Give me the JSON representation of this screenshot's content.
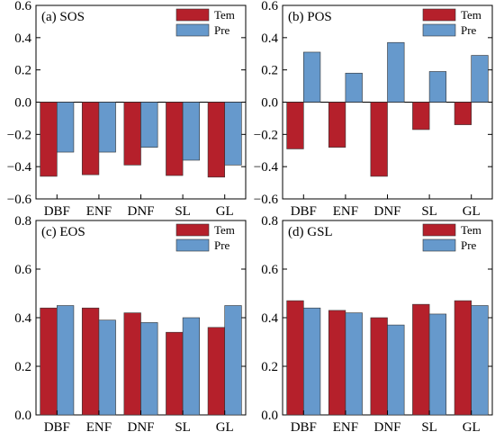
{
  "figure": {
    "series_colors": {
      "Tem": "#b5202b",
      "Pre": "#6699cc"
    }
  },
  "chart_data": [
    {
      "type": "bar",
      "title": "(a) SOS",
      "categories": [
        "DBF",
        "ENF",
        "DNF",
        "SL",
        "GL"
      ],
      "series": [
        {
          "name": "Tem",
          "values": [
            -0.46,
            -0.45,
            -0.39,
            -0.455,
            -0.465
          ]
        },
        {
          "name": "Pre",
          "values": [
            -0.31,
            -0.31,
            -0.28,
            -0.36,
            -0.39
          ]
        }
      ],
      "ylim": [
        -0.6,
        0.6
      ],
      "yticks": [
        -0.6,
        -0.4,
        -0.2,
        0.0,
        0.2,
        0.4,
        0.6
      ],
      "ytick_labels": [
        "−0.6",
        "−0.4",
        "−0.2",
        "0.0",
        "0.2",
        "0.4",
        "0.6"
      ],
      "grid": false,
      "legend": "top-right"
    },
    {
      "type": "bar",
      "title": "(b) POS",
      "categories": [
        "DBF",
        "ENF",
        "DNF",
        "SL",
        "GL"
      ],
      "series": [
        {
          "name": "Tem",
          "values": [
            -0.29,
            -0.28,
            -0.46,
            -0.17,
            -0.14
          ]
        },
        {
          "name": "Pre",
          "values": [
            0.31,
            0.18,
            0.37,
            0.19,
            0.29
          ]
        }
      ],
      "ylim": [
        -0.6,
        0.6
      ],
      "yticks": [
        -0.6,
        -0.4,
        -0.2,
        0.0,
        0.2,
        0.4,
        0.6
      ],
      "ytick_labels": [
        "−0.6",
        "−0.4",
        "−0.2",
        "0.0",
        "0.2",
        "0.4",
        "0.6"
      ],
      "grid": false,
      "legend": "top-right"
    },
    {
      "type": "bar",
      "title": "(c) EOS",
      "categories": [
        "DBF",
        "ENF",
        "DNF",
        "SL",
        "GL"
      ],
      "series": [
        {
          "name": "Tem",
          "values": [
            0.44,
            0.44,
            0.42,
            0.34,
            0.36
          ]
        },
        {
          "name": "Pre",
          "values": [
            0.45,
            0.39,
            0.38,
            0.4,
            0.45
          ]
        }
      ],
      "ylim": [
        0.0,
        0.8
      ],
      "yticks": [
        0.0,
        0.2,
        0.4,
        0.6,
        0.8
      ],
      "ytick_labels": [
        "0.0",
        "0.2",
        "0.4",
        "0.6",
        "0.8"
      ],
      "grid": false,
      "legend": "top-right"
    },
    {
      "type": "bar",
      "title": "(d) GSL",
      "categories": [
        "DBF",
        "ENF",
        "DNF",
        "SL",
        "GL"
      ],
      "series": [
        {
          "name": "Tem",
          "values": [
            0.47,
            0.43,
            0.4,
            0.455,
            0.47
          ]
        },
        {
          "name": "Pre",
          "values": [
            0.44,
            0.42,
            0.37,
            0.415,
            0.45
          ]
        }
      ],
      "ylim": [
        0.0,
        0.8
      ],
      "yticks": [
        0.0,
        0.2,
        0.4,
        0.6,
        0.8
      ],
      "ytick_labels": [
        "0.0",
        "0.2",
        "0.4",
        "0.6",
        "0.8"
      ],
      "grid": false,
      "legend": "top-right"
    }
  ]
}
